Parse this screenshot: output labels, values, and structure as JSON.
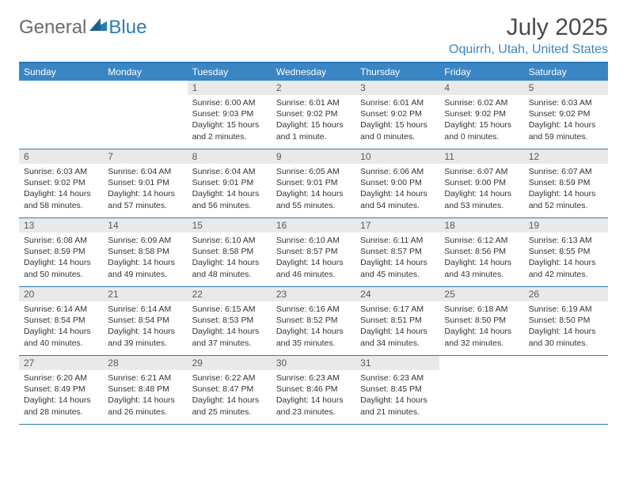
{
  "logo": {
    "text_a": "General",
    "text_b": "Blue"
  },
  "header": {
    "month_title": "July 2025",
    "location": "Oquirrh, Utah, United States"
  },
  "colors": {
    "accent": "#3a86c4",
    "border": "#2a7ab8",
    "daynum_bg": "#e9e9e9",
    "text": "#333333",
    "logo_gray": "#6b6b6b"
  },
  "weekdays": [
    "Sunday",
    "Monday",
    "Tuesday",
    "Wednesday",
    "Thursday",
    "Friday",
    "Saturday"
  ],
  "weeks": [
    [
      null,
      null,
      {
        "n": "1",
        "sunrise": "Sunrise: 6:00 AM",
        "sunset": "Sunset: 9:03 PM",
        "daylight": "Daylight: 15 hours and 2 minutes."
      },
      {
        "n": "2",
        "sunrise": "Sunrise: 6:01 AM",
        "sunset": "Sunset: 9:02 PM",
        "daylight": "Daylight: 15 hours and 1 minute."
      },
      {
        "n": "3",
        "sunrise": "Sunrise: 6:01 AM",
        "sunset": "Sunset: 9:02 PM",
        "daylight": "Daylight: 15 hours and 0 minutes."
      },
      {
        "n": "4",
        "sunrise": "Sunrise: 6:02 AM",
        "sunset": "Sunset: 9:02 PM",
        "daylight": "Daylight: 15 hours and 0 minutes."
      },
      {
        "n": "5",
        "sunrise": "Sunrise: 6:03 AM",
        "sunset": "Sunset: 9:02 PM",
        "daylight": "Daylight: 14 hours and 59 minutes."
      }
    ],
    [
      {
        "n": "6",
        "sunrise": "Sunrise: 6:03 AM",
        "sunset": "Sunset: 9:02 PM",
        "daylight": "Daylight: 14 hours and 58 minutes."
      },
      {
        "n": "7",
        "sunrise": "Sunrise: 6:04 AM",
        "sunset": "Sunset: 9:01 PM",
        "daylight": "Daylight: 14 hours and 57 minutes."
      },
      {
        "n": "8",
        "sunrise": "Sunrise: 6:04 AM",
        "sunset": "Sunset: 9:01 PM",
        "daylight": "Daylight: 14 hours and 56 minutes."
      },
      {
        "n": "9",
        "sunrise": "Sunrise: 6:05 AM",
        "sunset": "Sunset: 9:01 PM",
        "daylight": "Daylight: 14 hours and 55 minutes."
      },
      {
        "n": "10",
        "sunrise": "Sunrise: 6:06 AM",
        "sunset": "Sunset: 9:00 PM",
        "daylight": "Daylight: 14 hours and 54 minutes."
      },
      {
        "n": "11",
        "sunrise": "Sunrise: 6:07 AM",
        "sunset": "Sunset: 9:00 PM",
        "daylight": "Daylight: 14 hours and 53 minutes."
      },
      {
        "n": "12",
        "sunrise": "Sunrise: 6:07 AM",
        "sunset": "Sunset: 8:59 PM",
        "daylight": "Daylight: 14 hours and 52 minutes."
      }
    ],
    [
      {
        "n": "13",
        "sunrise": "Sunrise: 6:08 AM",
        "sunset": "Sunset: 8:59 PM",
        "daylight": "Daylight: 14 hours and 50 minutes."
      },
      {
        "n": "14",
        "sunrise": "Sunrise: 6:09 AM",
        "sunset": "Sunset: 8:58 PM",
        "daylight": "Daylight: 14 hours and 49 minutes."
      },
      {
        "n": "15",
        "sunrise": "Sunrise: 6:10 AM",
        "sunset": "Sunset: 8:58 PM",
        "daylight": "Daylight: 14 hours and 48 minutes."
      },
      {
        "n": "16",
        "sunrise": "Sunrise: 6:10 AM",
        "sunset": "Sunset: 8:57 PM",
        "daylight": "Daylight: 14 hours and 46 minutes."
      },
      {
        "n": "17",
        "sunrise": "Sunrise: 6:11 AM",
        "sunset": "Sunset: 8:57 PM",
        "daylight": "Daylight: 14 hours and 45 minutes."
      },
      {
        "n": "18",
        "sunrise": "Sunrise: 6:12 AM",
        "sunset": "Sunset: 8:56 PM",
        "daylight": "Daylight: 14 hours and 43 minutes."
      },
      {
        "n": "19",
        "sunrise": "Sunrise: 6:13 AM",
        "sunset": "Sunset: 8:55 PM",
        "daylight": "Daylight: 14 hours and 42 minutes."
      }
    ],
    [
      {
        "n": "20",
        "sunrise": "Sunrise: 6:14 AM",
        "sunset": "Sunset: 8:54 PM",
        "daylight": "Daylight: 14 hours and 40 minutes."
      },
      {
        "n": "21",
        "sunrise": "Sunrise: 6:14 AM",
        "sunset": "Sunset: 8:54 PM",
        "daylight": "Daylight: 14 hours and 39 minutes."
      },
      {
        "n": "22",
        "sunrise": "Sunrise: 6:15 AM",
        "sunset": "Sunset: 8:53 PM",
        "daylight": "Daylight: 14 hours and 37 minutes."
      },
      {
        "n": "23",
        "sunrise": "Sunrise: 6:16 AM",
        "sunset": "Sunset: 8:52 PM",
        "daylight": "Daylight: 14 hours and 35 minutes."
      },
      {
        "n": "24",
        "sunrise": "Sunrise: 6:17 AM",
        "sunset": "Sunset: 8:51 PM",
        "daylight": "Daylight: 14 hours and 34 minutes."
      },
      {
        "n": "25",
        "sunrise": "Sunrise: 6:18 AM",
        "sunset": "Sunset: 8:50 PM",
        "daylight": "Daylight: 14 hours and 32 minutes."
      },
      {
        "n": "26",
        "sunrise": "Sunrise: 6:19 AM",
        "sunset": "Sunset: 8:50 PM",
        "daylight": "Daylight: 14 hours and 30 minutes."
      }
    ],
    [
      {
        "n": "27",
        "sunrise": "Sunrise: 6:20 AM",
        "sunset": "Sunset: 8:49 PM",
        "daylight": "Daylight: 14 hours and 28 minutes."
      },
      {
        "n": "28",
        "sunrise": "Sunrise: 6:21 AM",
        "sunset": "Sunset: 8:48 PM",
        "daylight": "Daylight: 14 hours and 26 minutes."
      },
      {
        "n": "29",
        "sunrise": "Sunrise: 6:22 AM",
        "sunset": "Sunset: 8:47 PM",
        "daylight": "Daylight: 14 hours and 25 minutes."
      },
      {
        "n": "30",
        "sunrise": "Sunrise: 6:23 AM",
        "sunset": "Sunset: 8:46 PM",
        "daylight": "Daylight: 14 hours and 23 minutes."
      },
      {
        "n": "31",
        "sunrise": "Sunrise: 6:23 AM",
        "sunset": "Sunset: 8:45 PM",
        "daylight": "Daylight: 14 hours and 21 minutes."
      },
      null,
      null
    ]
  ]
}
